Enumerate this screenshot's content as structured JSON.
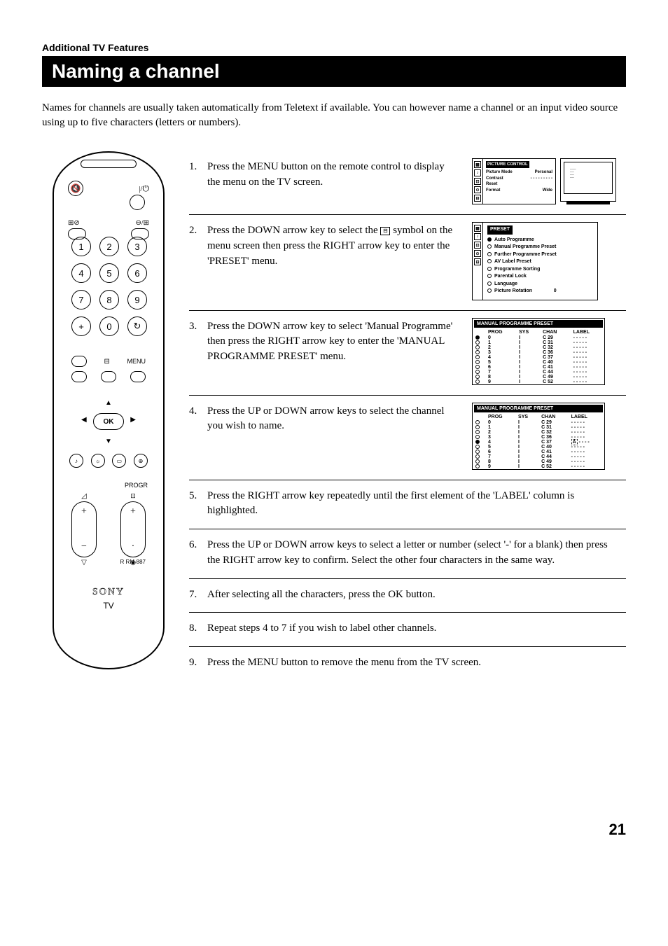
{
  "section_label": "Additional TV Features",
  "title": "Naming a channel",
  "intro": "Names for channels are usually taken automatically from Teletext if available.  You can however name a channel or an input video source using up to five characters (letters or numbers).",
  "page_number": "21",
  "remote": {
    "power_symbol": "⏻",
    "mute_symbol": "✕",
    "numbers": [
      "1",
      "2",
      "3",
      "4",
      "5",
      "6",
      "7",
      "8",
      "9",
      "+",
      "0",
      "↻"
    ],
    "menu_label": "MENU",
    "ok_label": "OK",
    "progr_label": "PROGR",
    "rm_label": "R RM-887",
    "brand": "SONY",
    "tv_label": "TV"
  },
  "steps": [
    {
      "n": "1.",
      "text": "Press the MENU button on the remote control to display the menu on the TV screen."
    },
    {
      "n": "2.",
      "text_pre": "Press the DOWN arrow key to select the ",
      "text_post": " symbol on the menu screen then press the RIGHT arrow key to enter the 'PRESET' menu."
    },
    {
      "n": "3.",
      "text": "Press the DOWN arrow key to select 'Manual Programme' then press the RIGHT arrow key to enter the 'MANUAL PROGRAMME PRESET' menu."
    },
    {
      "n": "4.",
      "text": "Press the UP or DOWN arrow keys to select the channel you wish to name."
    },
    {
      "n": "5.",
      "text": "Press the RIGHT arrow key repeatedly until the first element of the 'LABEL' column is highlighted."
    },
    {
      "n": "6.",
      "text": "Press the UP or DOWN arrow keys to select a letter or number (select '-' for a blank) then press the RIGHT arrow key to confirm.  Select the other four characters in the same way."
    },
    {
      "n": "7.",
      "text": "After selecting all the characters, press the OK button."
    },
    {
      "n": "8.",
      "text": "Repeat steps 4 to 7 if you wish to label other channels."
    },
    {
      "n": "9.",
      "text": "Press the MENU button to remove the menu from the TV screen."
    }
  ],
  "osd1": {
    "title": "PICTURE CONTROL",
    "rows": [
      {
        "k": "Picture Mode",
        "v": "Personal"
      },
      {
        "k": "Contrast",
        "v": "- - - - - - - - -"
      },
      {
        "k": "Reset",
        "v": ""
      },
      {
        "k": "Format",
        "v": "Wide"
      }
    ]
  },
  "osd2": {
    "title": "PRESET",
    "items": [
      {
        "sel": true,
        "label": "Auto Programme"
      },
      {
        "sel": false,
        "label": "Manual Programme Preset"
      },
      {
        "sel": false,
        "label": "Further Programme Preset"
      },
      {
        "sel": false,
        "label": "AV Label Preset"
      },
      {
        "sel": false,
        "label": "Programme Sorting"
      },
      {
        "sel": false,
        "label": "Parental Lock"
      },
      {
        "sel": false,
        "label": "Language"
      },
      {
        "sel": false,
        "label": "Picture Rotation",
        "extra": "0"
      }
    ]
  },
  "osd3": {
    "title": "MANUAL PROGRAMME PRESET",
    "selected_row": 0,
    "headers": [
      "PROG",
      "SYS",
      "CHAN",
      "LABEL"
    ],
    "rows": [
      [
        "0",
        "I",
        "C 29",
        "- - - - -"
      ],
      [
        "1",
        "I",
        "C 31",
        "- - - - -"
      ],
      [
        "2",
        "I",
        "C 32",
        "- - - - -"
      ],
      [
        "3",
        "I",
        "C 36",
        "- - - - -"
      ],
      [
        "4",
        "I",
        "C 37",
        "- - - - -"
      ],
      [
        "5",
        "I",
        "C 40",
        "- - - - -"
      ],
      [
        "6",
        "I",
        "C 41",
        "- - - - -"
      ],
      [
        "7",
        "I",
        "C 44",
        "- - - - -"
      ],
      [
        "8",
        "I",
        "C 49",
        "- - - - -"
      ],
      [
        "9",
        "I",
        "C 52",
        "- - - - -"
      ]
    ]
  },
  "osd4": {
    "title": "MANUAL PROGRAMME PRESET",
    "selected_row": 4,
    "headers": [
      "PROG",
      "SYS",
      "CHAN",
      "LABEL"
    ],
    "rows": [
      [
        "0",
        "I",
        "C 29",
        "- - - - -"
      ],
      [
        "1",
        "I",
        "C 31",
        "- - - - -"
      ],
      [
        "2",
        "I",
        "C 32",
        "- - - - -"
      ],
      [
        "3",
        "I",
        "C 36",
        "- - - - -"
      ],
      [
        "4",
        "I",
        "C 37",
        "A - - - -"
      ],
      [
        "5",
        "I",
        "C 40",
        "- - - - -"
      ],
      [
        "6",
        "I",
        "C 41",
        "- - - - -"
      ],
      [
        "7",
        "I",
        "C 44",
        "- - - - -"
      ],
      [
        "8",
        "I",
        "C 49",
        "- - - - -"
      ],
      [
        "9",
        "I",
        "C 52",
        "- - - - -"
      ]
    ]
  }
}
